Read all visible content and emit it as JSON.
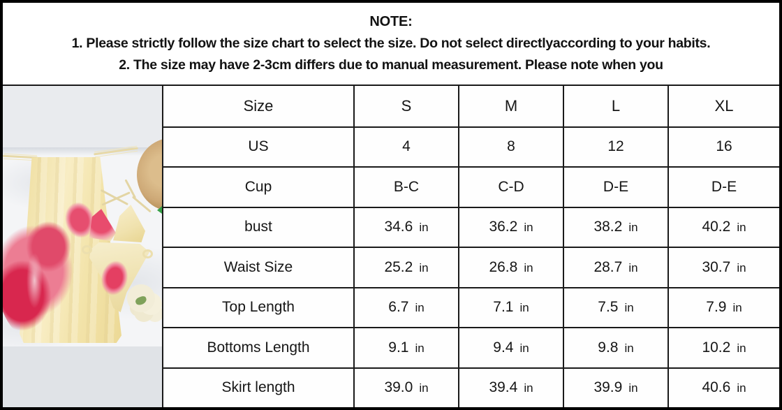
{
  "note": {
    "title": "NOTE:",
    "line1": "1. Please strictly follow the size chart to select the size. Do not select directlyaccording to your habits.",
    "line2": "2. The size may have 2-3cm differs due to manual measurement. Please note when you"
  },
  "photo": {
    "description": "Flat-lay product photo: pale yellow slip dress with large red flower print, matching halter bikini top and bottom, straw hat and small white flower bouquet on white fabric",
    "colors": {
      "frame-black": "#000000",
      "line-black": "#1a1a1a",
      "backdrop-top": "#e9ebee",
      "backdrop-bottom": "#e0e3e7",
      "fabric-white": "#f4f5f7",
      "dress-yellow": "#f3e4ab",
      "dress-yellow-light": "#f8edc4",
      "flower-red": "#d8274e",
      "flower-pink": "#ec7d93",
      "straw-tan": "#cda876",
      "straw-dark": "#ab8449",
      "cream-tie": "#e7d9a8",
      "bouquet-cream": "#f2edd8",
      "leaf-green": "#35a046"
    }
  },
  "chart_data": {
    "type": "table",
    "columns": [
      "Size",
      "S",
      "M",
      "L",
      "XL"
    ],
    "rows": [
      {
        "label": "US",
        "values": [
          "4",
          "8",
          "12",
          "16"
        ],
        "unit": ""
      },
      {
        "label": "Cup",
        "values": [
          "B-C",
          "C-D",
          "D-E",
          "D-E"
        ],
        "unit": ""
      },
      {
        "label": "bust",
        "values": [
          "34.6",
          "36.2",
          "38.2",
          "40.2"
        ],
        "unit": "in"
      },
      {
        "label": "Waist Size",
        "values": [
          "25.2",
          "26.8",
          "28.7",
          "30.7"
        ],
        "unit": "in"
      },
      {
        "label": "Top Length",
        "values": [
          "6.7",
          "7.1",
          "7.5",
          "7.9"
        ],
        "unit": "in"
      },
      {
        "label": "Bottoms Length",
        "values": [
          "9.1",
          "9.4",
          "9.8",
          "10.2"
        ],
        "unit": "in"
      },
      {
        "label": "Skirt length",
        "values": [
          "39.0",
          "39.4",
          "39.9",
          "40.6"
        ],
        "unit": "in"
      }
    ]
  }
}
